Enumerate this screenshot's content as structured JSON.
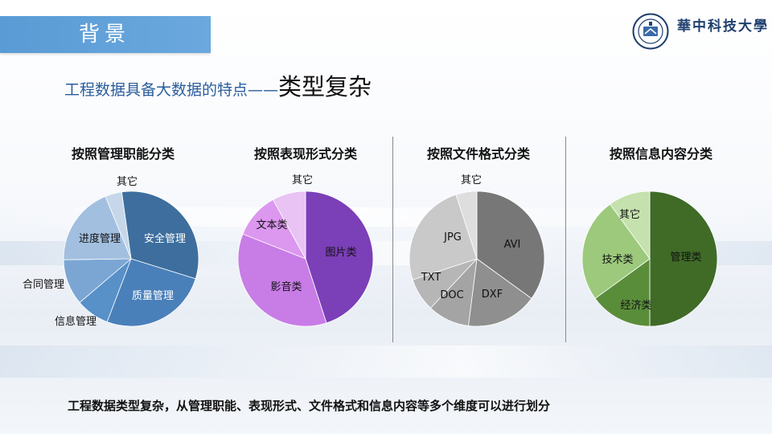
{
  "header": {
    "title": "背景"
  },
  "logo": {
    "text": "華中科技大學"
  },
  "subtitle": {
    "lead": "工程数据具备大数据的特点——",
    "emphasis": "类型复杂"
  },
  "chart_data": [
    {
      "type": "pie",
      "title": "按照管理职能分类",
      "slices": [
        {
          "label": "安全管理",
          "value": 32,
          "color": "#3d6e9e"
        },
        {
          "label": "质量管理",
          "value": 26,
          "color": "#4a80ba"
        },
        {
          "label": "信息管理",
          "value": 8,
          "color": "#5890c8"
        },
        {
          "label": "合同管理",
          "value": 11,
          "color": "#7ba6d4"
        },
        {
          "label": "进度管理",
          "value": 19,
          "color": "#a2bfe0"
        },
        {
          "label": "其它",
          "value": 4,
          "color": "#c6d7ea"
        }
      ]
    },
    {
      "type": "pie",
      "title": "按照表现形式分类",
      "slices": [
        {
          "label": "图片类",
          "value": 45,
          "color": "#7b3fb8"
        },
        {
          "label": "影音类",
          "value": 36,
          "color": "#c87ce6"
        },
        {
          "label": "文本类",
          "value": 11,
          "color": "#dc97ef"
        },
        {
          "label": "其它",
          "value": 8,
          "color": "#e8c3f4"
        }
      ]
    },
    {
      "type": "pie",
      "title": "按照文件格式分类",
      "slices": [
        {
          "label": "AVI",
          "value": 35,
          "color": "#777777"
        },
        {
          "label": "DXF",
          "value": 17,
          "color": "#8f8f8f"
        },
        {
          "label": "DOC",
          "value": 10,
          "color": "#a4a4a4"
        },
        {
          "label": "TXT",
          "value": 8,
          "color": "#b6b6b6"
        },
        {
          "label": "JPG",
          "value": 25,
          "color": "#c9c9c9"
        },
        {
          "label": "其它",
          "value": 5,
          "color": "#dedede"
        }
      ]
    },
    {
      "type": "pie",
      "title": "按照信息内容分类",
      "slices": [
        {
          "label": "管理类",
          "value": 50,
          "color": "#3f6b27"
        },
        {
          "label": "经济类",
          "value": 15,
          "color": "#5a8d3a"
        },
        {
          "label": "技术类",
          "value": 25,
          "color": "#9cc97c"
        },
        {
          "label": "其它",
          "value": 10,
          "color": "#c5e1ad"
        }
      ]
    }
  ],
  "footer": {
    "text": "工程数据类型复杂，从管理职能、表现形式、文件格式和信息内容等多个维度可以进行划分"
  }
}
